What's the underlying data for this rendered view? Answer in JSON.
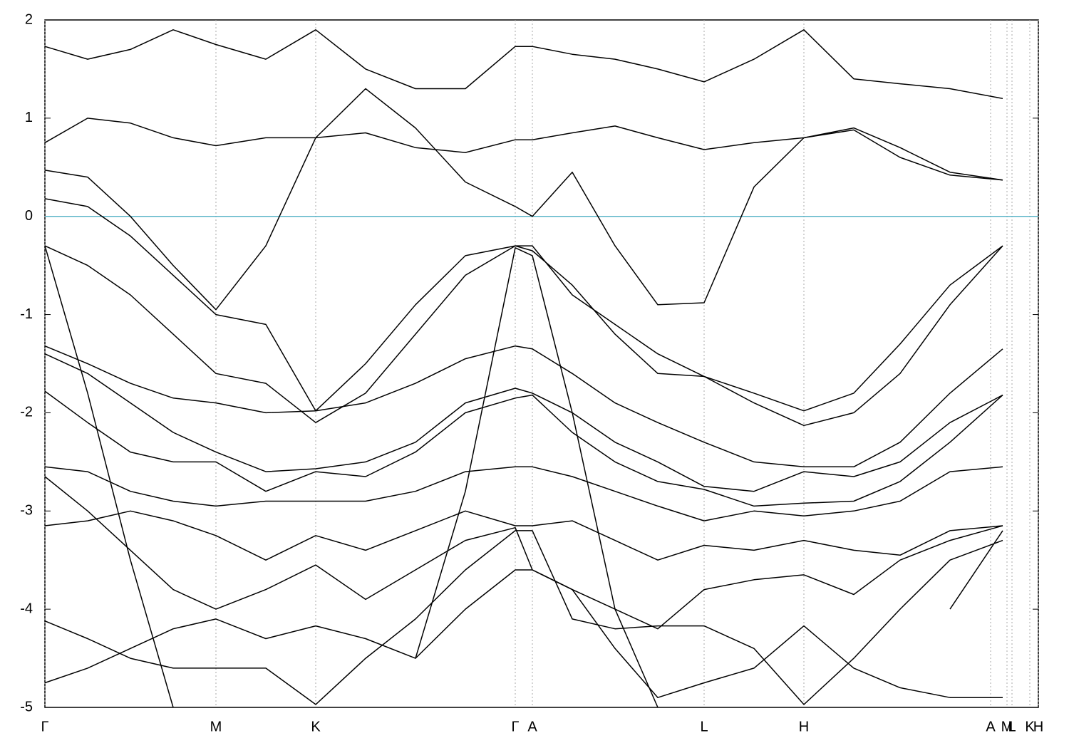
{
  "chart_data": {
    "type": "line",
    "color": "#000000",
    "hline": {
      "value": 0,
      "color": "#5ab4c8"
    },
    "grid": true,
    "xlim": [
      0,
      1.394
    ],
    "ylim": [
      -5,
      2
    ],
    "yticks": [
      2,
      1,
      0,
      -1,
      -2,
      -3,
      -4,
      -5
    ],
    "xticks": [
      {
        "value": 0,
        "label": "Γ"
      },
      {
        "value": 0.24,
        "label": "M"
      },
      {
        "value": 0.38,
        "label": "K"
      },
      {
        "value": 0.66,
        "label": "Γ"
      },
      {
        "value": 0.684,
        "label": "A"
      },
      {
        "value": 0.925,
        "label": "L"
      },
      {
        "value": 1.065,
        "label": "H"
      },
      {
        "value": 1.327,
        "label": "A"
      },
      {
        "value": 1.35,
        "label": "M"
      },
      {
        "value": 1.357,
        "label": "L"
      },
      {
        "value": 1.382,
        "label": "K"
      },
      {
        "value": 1.394,
        "label": "H"
      }
    ],
    "x": [
      0,
      0.06,
      0.12,
      0.18,
      0.24,
      0.31,
      0.38,
      0.45,
      0.52,
      0.59,
      0.66,
      0.684,
      0.74,
      0.8,
      0.86,
      0.925,
      0.995,
      1.065,
      1.135,
      1.2,
      1.27,
      1.344
    ],
    "series": [
      {
        "values": [
          1.73,
          1.6,
          1.7,
          1.9,
          1.75,
          1.6,
          1.9,
          1.5,
          1.3,
          1.3,
          1.73,
          1.73,
          1.65,
          1.6,
          1.5,
          1.37,
          1.6,
          1.9,
          1.4,
          1.35,
          1.3,
          1.2
        ]
      },
      {
        "values": [
          0.75,
          1.0,
          0.95,
          0.8,
          0.72,
          0.8,
          0.8,
          0.85,
          0.7,
          0.65,
          0.78,
          0.78,
          0.85,
          0.92,
          0.8,
          0.68,
          0.75,
          0.8,
          0.9,
          0.7,
          0.45,
          0.37
        ]
      },
      {
        "values": [
          0.47,
          0.4,
          0.0,
          -0.5,
          -0.95,
          -0.3,
          0.8,
          1.3,
          0.9,
          0.35,
          0.1,
          0.0,
          0.45,
          -0.3,
          -0.9,
          -0.88,
          0.3,
          0.8,
          0.88,
          0.6,
          0.42,
          0.37
        ]
      },
      {
        "values": [
          0.18,
          0.1,
          -0.2,
          -0.6,
          -1.0,
          -1.1,
          -1.98,
          -1.5,
          -0.9,
          -0.4,
          -0.3,
          -0.3,
          -0.8,
          -1.1,
          -1.4,
          -1.63,
          -1.8,
          -1.98,
          -1.8,
          -1.3,
          -0.7,
          -0.3
        ]
      },
      {
        "values": [
          -0.3,
          -0.5,
          -0.8,
          -1.2,
          -1.6,
          -1.7,
          -2.1,
          -1.8,
          -1.2,
          -0.6,
          -0.3,
          -0.35,
          -0.7,
          -1.2,
          -1.6,
          -1.63,
          -1.9,
          -2.13,
          -2.0,
          -1.6,
          -0.9,
          -0.3
        ]
      },
      {
        "values": [
          -1.32,
          -1.5,
          -1.7,
          -1.85,
          -1.9,
          -2.0,
          -1.98,
          -1.9,
          -1.7,
          -1.45,
          -1.32,
          -1.35,
          -1.6,
          -1.9,
          -2.1,
          -2.3,
          -2.5,
          -2.55,
          -2.55,
          -2.3,
          -1.8,
          -1.35
        ]
      },
      {
        "values": [
          -1.4,
          -1.6,
          -1.9,
          -2.2,
          -2.4,
          -2.6,
          -2.57,
          -2.5,
          -2.3,
          -1.9,
          -1.75,
          -1.8,
          -2.0,
          -2.3,
          -2.5,
          -2.75,
          -2.8,
          -2.6,
          -2.65,
          -2.5,
          -2.1,
          -1.82
        ]
      },
      {
        "values": [
          -1.78,
          -2.1,
          -2.4,
          -2.5,
          -2.5,
          -2.8,
          -2.6,
          -2.65,
          -2.4,
          -2.0,
          -1.85,
          -1.82,
          -2.2,
          -2.5,
          -2.7,
          -2.78,
          -2.95,
          -2.92,
          -2.9,
          -2.7,
          -2.3,
          -1.82
        ]
      },
      {
        "values": [
          -2.55,
          -2.6,
          -2.8,
          -2.9,
          -2.95,
          -2.9,
          -2.9,
          -2.9,
          -2.8,
          -2.6,
          -2.55,
          -2.55,
          -2.65,
          -2.8,
          -2.95,
          -3.1,
          -3.0,
          -3.05,
          -3.0,
          -2.9,
          -2.6,
          -2.55
        ]
      },
      {
        "values": [
          -3.15,
          -3.1,
          -3.0,
          -3.1,
          -3.25,
          -3.5,
          -3.25,
          -3.4,
          -3.2,
          -3.0,
          -3.15,
          -3.15,
          -3.1,
          -3.3,
          -3.5,
          -3.35,
          -3.4,
          -3.3,
          -3.4,
          -3.45,
          -3.2,
          -3.15
        ]
      },
      {
        "values": [
          -2.65,
          -3.0,
          -3.4,
          -3.8,
          -4.0,
          -3.8,
          -3.55,
          -3.9,
          -3.6,
          -3.3,
          -3.17,
          -3.6,
          -3.8,
          -4.0,
          -4.2,
          -3.8,
          -3.7,
          -3.65,
          -3.85,
          -3.5,
          -3.3,
          -3.15
        ]
      },
      {
        "values": [
          -4.12,
          -4.3,
          -4.5,
          -4.6,
          -4.6,
          -4.6,
          -4.97,
          -4.5,
          -4.1,
          -3.6,
          -3.2,
          -3.2,
          -4.1,
          -4.2,
          -4.17,
          -4.17,
          -4.4,
          -4.97,
          -4.5,
          -4.0,
          -3.5,
          -3.3
        ]
      },
      {
        "values": [
          -4.75,
          -4.6,
          -4.4,
          -4.2,
          -4.1,
          -4.3,
          -4.17,
          -4.3,
          -4.5,
          -4.0,
          -3.6,
          -3.6,
          -3.8,
          -4.4,
          -4.9,
          -4.75,
          -4.6,
          -4.17,
          -4.6,
          -4.8,
          -4.9,
          -4.9
        ]
      },
      {
        "values": [
          -0.3,
          -1.8,
          -3.5,
          -5.0,
          null,
          null,
          null,
          null,
          -4.5,
          -2.8,
          -0.32,
          -0.4,
          -2.0,
          -4.0,
          -5.0,
          null,
          null,
          null,
          null,
          null,
          -4.0,
          -3.2
        ]
      }
    ]
  }
}
